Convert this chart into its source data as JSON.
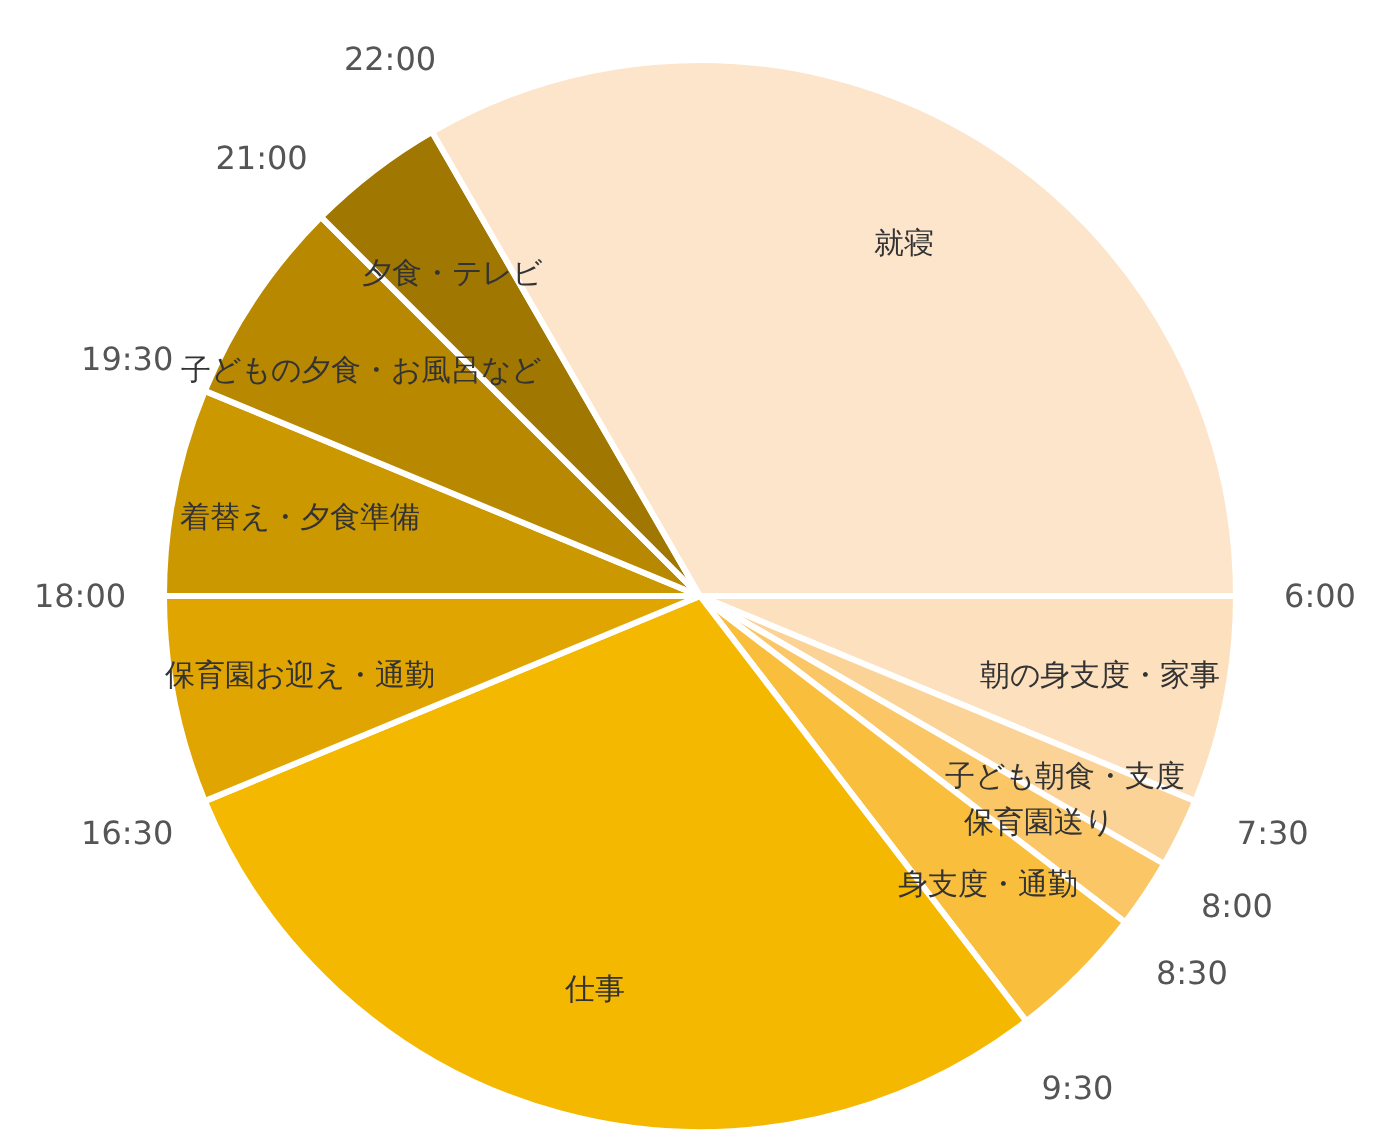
{
  "chart_data": {
    "type": "pie",
    "categories": [
      "朝の身支度・家事",
      "子ども朝食・支度",
      "保育園送り",
      "身支度・通勤",
      "仕事",
      "保育園お迎え・通勤",
      "着替え・夕食準備",
      "子どもの夕食・お風呂など",
      "夕食・テレビ",
      "就寝"
    ],
    "values": [
      6.25,
      2.083,
      2.083,
      4.167,
      29.167,
      6.25,
      6.25,
      6.25,
      4.167,
      33.333
    ],
    "colors": [
      "#fde0bd",
      "#fcd396",
      "#fbc766",
      "#f9be3c",
      "#f5b800",
      "#e0a500",
      "#cc9800",
      "#b88800",
      "#a07700",
      "#fde5cc"
    ],
    "annotations": [
      "6:00",
      "7:30",
      "8:00",
      "8:30",
      "9:30",
      "16:30",
      "18:00",
      "19:30",
      "21:00",
      "22:00"
    ]
  }
}
